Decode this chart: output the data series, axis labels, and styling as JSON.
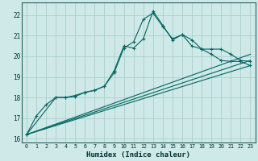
{
  "xlabel": "Humidex (Indice chaleur)",
  "bg_color": "#cfe8e8",
  "grid_color": "#a8d0cc",
  "line_color": "#006660",
  "xlim": [
    -0.5,
    23.5
  ],
  "ylim": [
    15.8,
    22.6
  ],
  "xticks": [
    0,
    1,
    2,
    3,
    4,
    5,
    6,
    7,
    8,
    9,
    10,
    11,
    12,
    13,
    14,
    15,
    16,
    17,
    18,
    19,
    20,
    21,
    22,
    23
  ],
  "yticks": [
    16,
    17,
    18,
    19,
    20,
    21,
    22
  ],
  "series1_x": [
    0,
    1,
    2,
    3,
    4,
    5,
    6,
    7,
    8,
    9,
    10,
    11,
    12,
    13,
    14,
    15,
    16,
    17,
    18,
    19,
    20,
    21,
    22,
    23
  ],
  "series1_y": [
    16.2,
    17.1,
    17.65,
    18.0,
    18.0,
    18.1,
    18.25,
    18.35,
    18.55,
    19.3,
    20.5,
    20.4,
    20.85,
    22.2,
    21.5,
    20.8,
    21.05,
    20.5,
    20.35,
    20.35,
    20.35,
    20.1,
    19.8,
    19.75
  ],
  "series2_x": [
    0,
    3,
    4,
    5,
    6,
    7,
    8,
    9,
    10,
    11,
    12,
    13,
    14,
    15,
    16,
    17,
    18,
    19,
    20,
    21,
    22,
    23
  ],
  "series2_y": [
    16.2,
    18.0,
    18.0,
    18.05,
    18.25,
    18.35,
    18.55,
    19.2,
    20.4,
    20.7,
    21.8,
    22.1,
    21.45,
    20.85,
    21.05,
    20.8,
    20.35,
    20.1,
    19.8,
    19.75,
    19.75,
    19.55
  ],
  "line3_x": [
    0,
    23
  ],
  "line3_y": [
    16.2,
    19.55
  ],
  "line4_x": [
    0,
    23
  ],
  "line4_y": [
    16.2,
    20.1
  ],
  "line5_x": [
    0,
    23
  ],
  "line5_y": [
    16.2,
    19.8
  ]
}
